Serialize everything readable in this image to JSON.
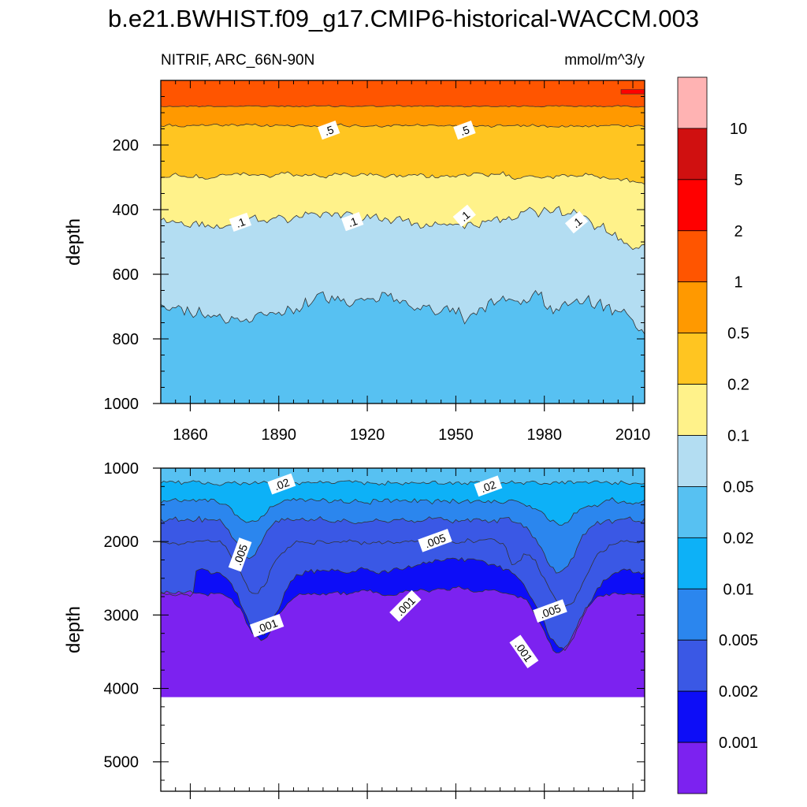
{
  "chart_data": {
    "type": "contour",
    "title": "b.e21.BWHIST.f09_g17.CMIP6-historical-WACCM.003",
    "variable_label": "NITRIF, ARC_66N-90N",
    "units_label": "mmol/m^3/y",
    "xrange": [
      1850,
      2014
    ],
    "x_ticks": [
      "1860",
      "1890",
      "1920",
      "1950",
      "1980",
      "2010"
    ],
    "x_tick_values": [
      1860,
      1890,
      1920,
      1950,
      1980,
      2010
    ],
    "colorbar": {
      "levels": [
        "10",
        "5",
        "2",
        "1",
        "0.5",
        "0.2",
        "0.1",
        "0.05",
        "0.02",
        "0.01",
        "0.005",
        "0.002",
        "0.001"
      ],
      "colors": [
        "#FFB3B3",
        "#D01010",
        "#FF0000",
        "#FF5500",
        "#FF9900",
        "#FFC521",
        "#FFF28A",
        "#B3DDF2",
        "#57C1F2",
        "#0DB1F7",
        "#2B86EE",
        "#3A58E5",
        "#0D0DF7",
        "#7C22F0"
      ]
    },
    "panels": [
      {
        "name": "upper",
        "ylabel": "depth",
        "ylim": [
          0,
          1000
        ],
        "y_ticks": [
          "200",
          "400",
          "600",
          "800",
          "1000"
        ],
        "y_tick_values": [
          200,
          400,
          600,
          800,
          1000
        ],
        "bands": [
          {
            "color": "#FF5500",
            "boundary_mean": 80,
            "amp": 4
          },
          {
            "color": "#FF9900",
            "boundary_mean": 140,
            "amp": 8
          },
          {
            "color": "#FFC521",
            "boundary_mean": 300,
            "amp": 14
          },
          {
            "color": "#FFF28A",
            "boundary_mean": 430,
            "amp": 22
          },
          {
            "color": "#B3DDF2",
            "boundary_mean": 700,
            "amp": 40
          },
          {
            "color": "#57C1F2",
            "boundary_mean": 1000,
            "amp": 0
          }
        ],
        "contour_labels": [
          {
            "text": ".5",
            "x": 1907,
            "y": 155
          },
          {
            "text": ".5",
            "x": 1953,
            "y": 155
          },
          {
            "text": ".1",
            "x": 1877,
            "y": 440
          },
          {
            "text": ".1",
            "x": 1915,
            "y": 438
          },
          {
            "text": ".1",
            "x": 1953,
            "y": 420
          },
          {
            "text": ".1",
            "x": 1991,
            "y": 440
          }
        ]
      },
      {
        "name": "lower",
        "ylabel": "depth",
        "ylim": [
          1000,
          5400
        ],
        "y_ticks": [
          "1000",
          "2000",
          "3000",
          "4000",
          "5000"
        ],
        "y_tick_values": [
          1000,
          2000,
          3000,
          4000,
          5000
        ],
        "data_bottom": 4120,
        "contour_labels": [
          {
            "text": ".02",
            "x": 1891,
            "y": 1220
          },
          {
            "text": ".02",
            "x": 1961,
            "y": 1250
          },
          {
            "text": ".005",
            "x": 1877,
            "y": 2180
          },
          {
            "text": ".005",
            "x": 1943,
            "y": 1990
          },
          {
            "text": ".005",
            "x": 1982,
            "y": 2950
          },
          {
            "text": ".001",
            "x": 1886,
            "y": 3150
          },
          {
            "text": ".001",
            "x": 1933,
            "y": 2880
          },
          {
            "text": ".001",
            "x": 1973,
            "y": 3500
          }
        ]
      }
    ]
  }
}
